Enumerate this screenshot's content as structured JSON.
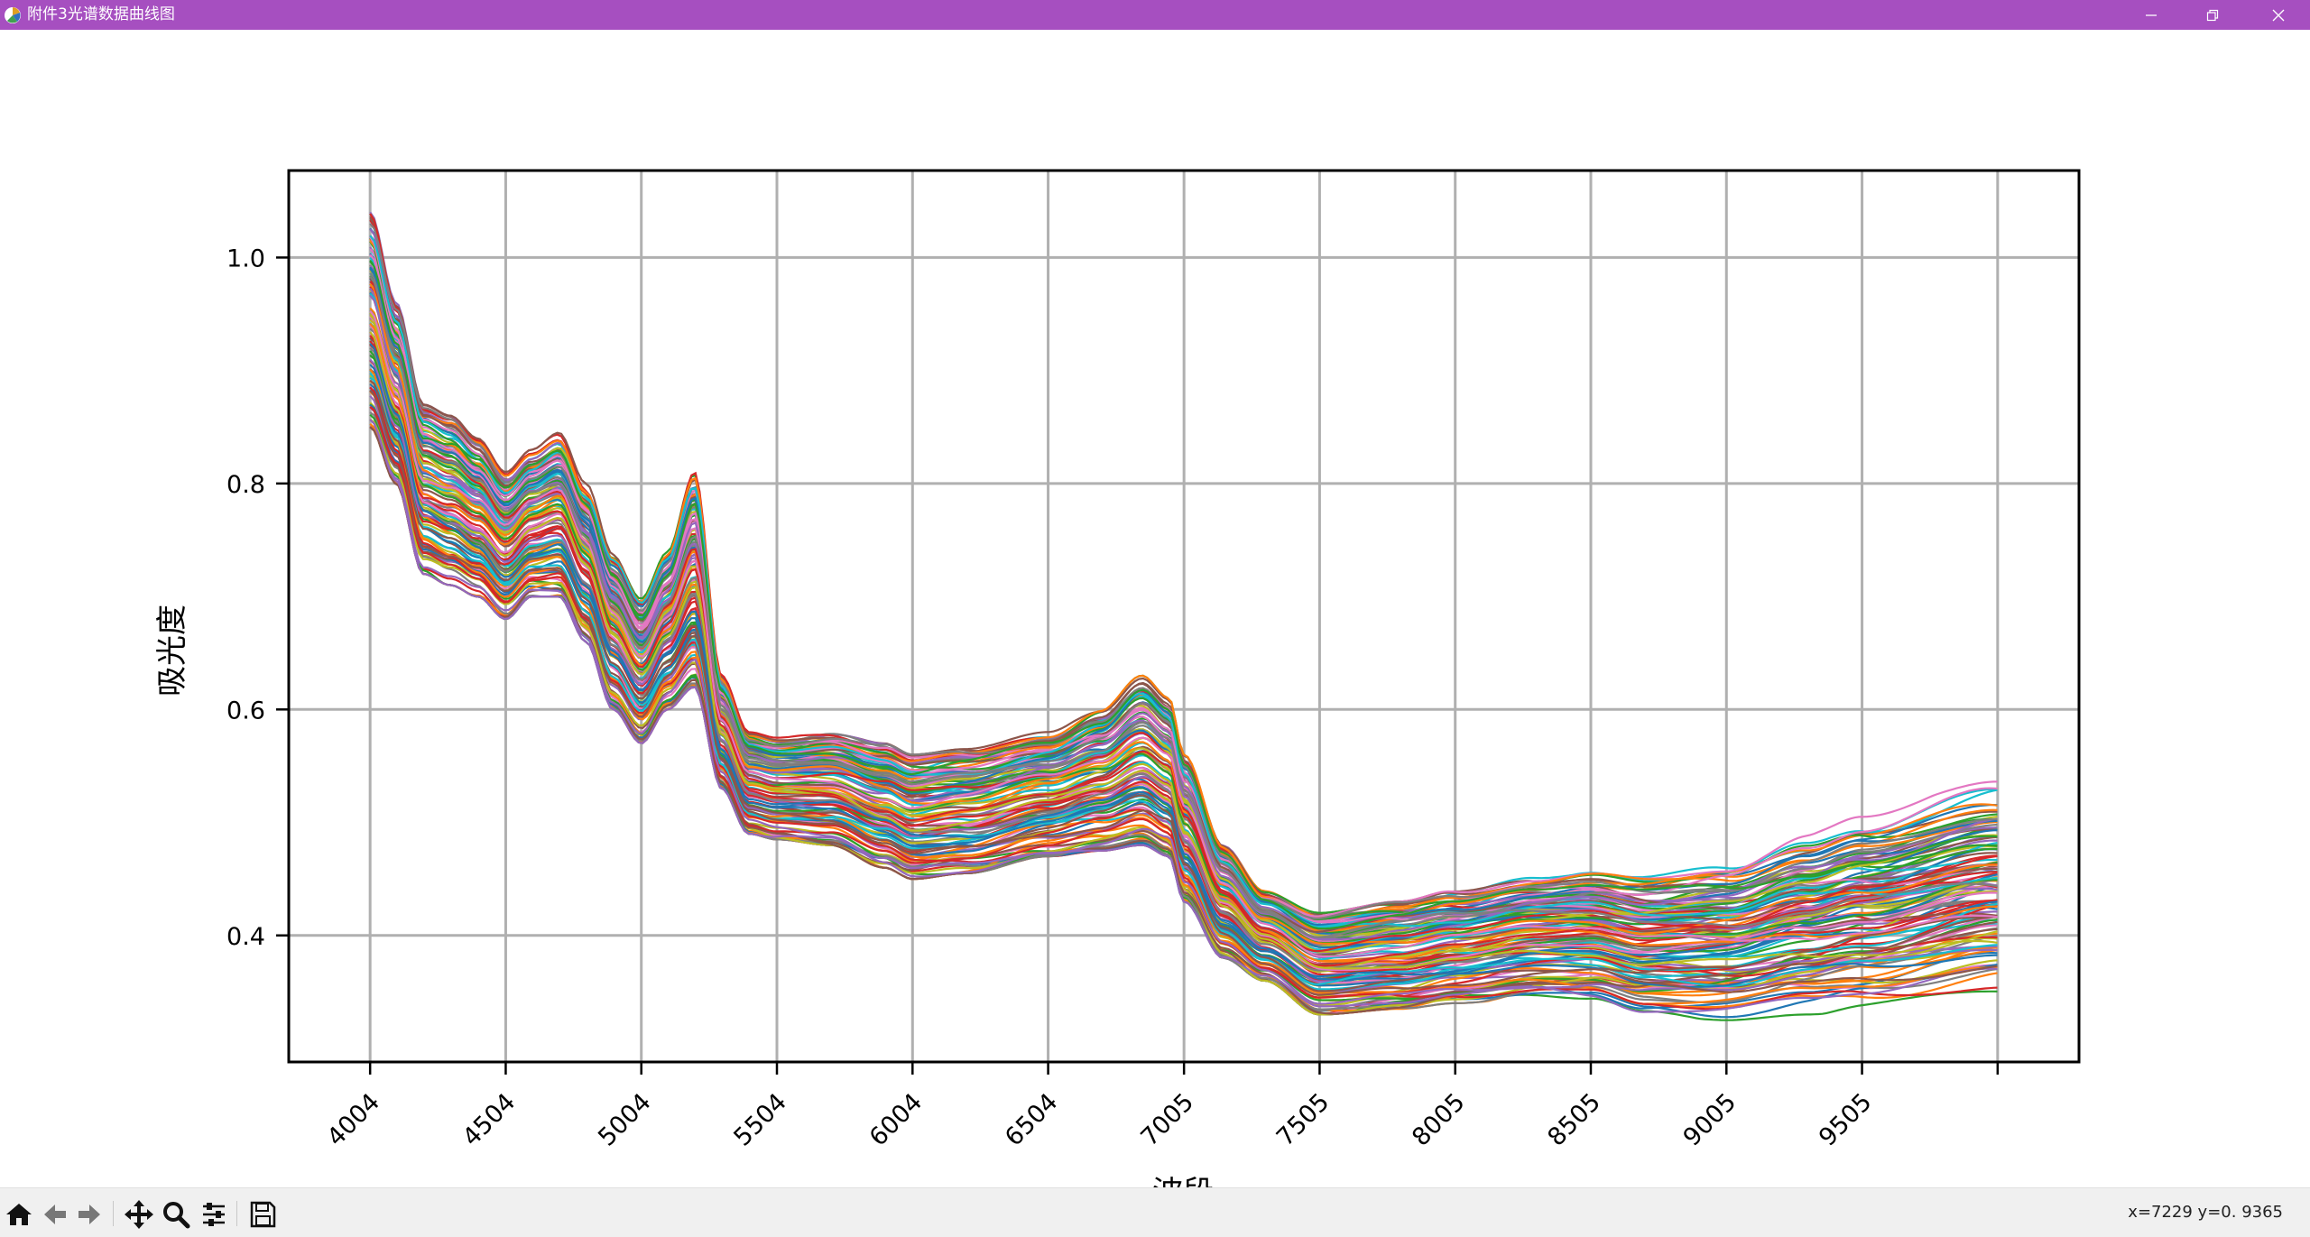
{
  "window": {
    "title": "附件3光谱数据曲线图"
  },
  "toolbar": {
    "tools": [
      "home-icon",
      "back-arrow-icon",
      "forward-arrow-icon",
      "pan-icon",
      "zoom-icon",
      "configure-subplots-icon",
      "save-icon"
    ],
    "coords_text": "x=7229  y=0. 9365"
  },
  "chart_data": {
    "type": "line",
    "title": "",
    "xlabel": "波段",
    "ylabel": "吸光度",
    "xlim": [
      3704,
      10305
    ],
    "ylim": [
      0.288,
      1.077
    ],
    "xticks": [
      4004,
      4504,
      5004,
      5504,
      6004,
      6504,
      7005,
      7505,
      8005,
      8505,
      9005,
      9505,
      10005
    ],
    "xtick_labels": [
      "4004",
      "4504",
      "5004",
      "5504",
      "6004",
      "6504",
      "7005",
      "7505",
      "8005",
      "8505",
      "9005",
      "9505",
      ""
    ],
    "yticks": [
      0.4,
      0.6,
      0.8,
      1.0
    ],
    "ytick_labels": [
      "0.4",
      "0.6",
      "0.8",
      "1.0"
    ],
    "grid": true,
    "series_count": 128,
    "series_colors": [
      "#1f77b4",
      "#ff7f0e",
      "#2ca02c",
      "#d62728",
      "#9467bd",
      "#8c564b",
      "#e377c2",
      "#7f7f7f",
      "#bcbd22",
      "#17becf"
    ],
    "envelope": {
      "x": [
        4004,
        4100,
        4200,
        4300,
        4400,
        4504,
        4600,
        4700,
        4800,
        4900,
        5004,
        5100,
        5200,
        5300,
        5400,
        5504,
        5700,
        5900,
        6004,
        6200,
        6504,
        6700,
        6850,
        6950,
        7005,
        7150,
        7300,
        7505,
        7800,
        8005,
        8300,
        8505,
        8700,
        9005,
        9300,
        9505,
        10005
      ],
      "low": [
        0.85,
        0.8,
        0.72,
        0.71,
        0.7,
        0.68,
        0.7,
        0.7,
        0.66,
        0.6,
        0.57,
        0.6,
        0.62,
        0.53,
        0.49,
        0.485,
        0.48,
        0.46,
        0.45,
        0.455,
        0.47,
        0.475,
        0.48,
        0.47,
        0.43,
        0.38,
        0.36,
        0.33,
        0.335,
        0.34,
        0.345,
        0.342,
        0.33,
        0.325,
        0.33,
        0.333,
        0.345
      ],
      "high": [
        1.04,
        0.96,
        0.87,
        0.86,
        0.84,
        0.81,
        0.83,
        0.845,
        0.8,
        0.74,
        0.7,
        0.74,
        0.81,
        0.63,
        0.58,
        0.575,
        0.58,
        0.57,
        0.56,
        0.565,
        0.58,
        0.6,
        0.63,
        0.61,
        0.56,
        0.48,
        0.44,
        0.42,
        0.43,
        0.44,
        0.455,
        0.46,
        0.455,
        0.465,
        0.49,
        0.505,
        0.54
      ]
    }
  }
}
